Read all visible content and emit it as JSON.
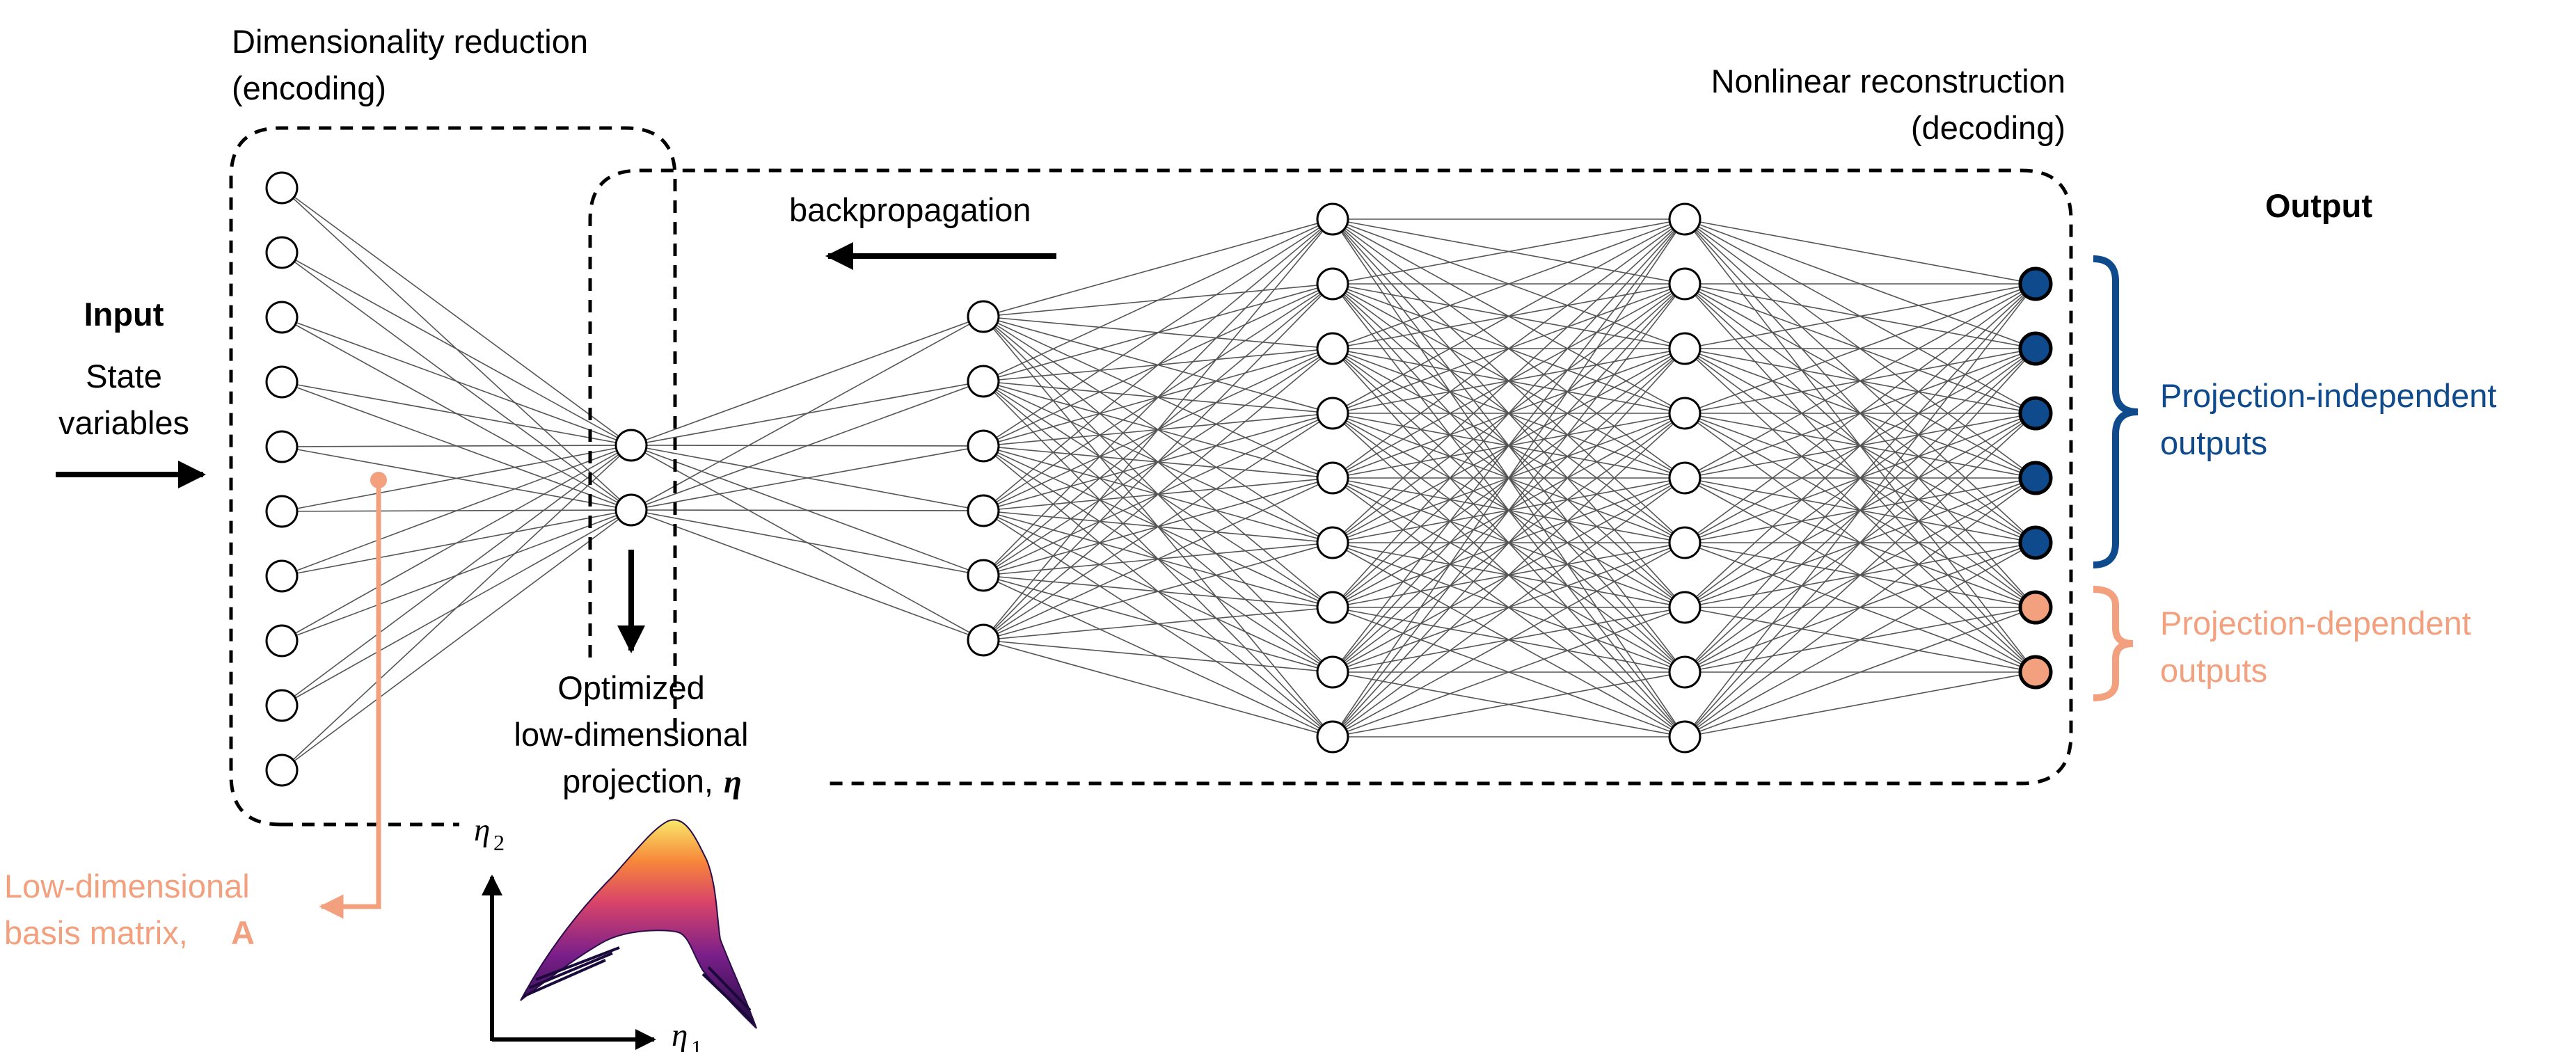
{
  "encoder_heading": {
    "line1": "Dimensionality reduction",
    "line2": "(encoding)"
  },
  "decoder_heading": {
    "line1": "Nonlinear reconstruction",
    "line2": "(decoding)"
  },
  "backprop_label": "backpropagation",
  "input": {
    "title": "Input",
    "line1": "State",
    "line2": "variables"
  },
  "output_title": "Output",
  "projection_label": {
    "line1": "Optimized",
    "line2": "low-dimensional",
    "line3": "projection,",
    "symbol": "η"
  },
  "basis_label": {
    "line1": "Low-dimensional",
    "line2": "basis matrix,",
    "symbol": "A"
  },
  "independent_label": {
    "line1": "Projection-independent",
    "line2": "outputs"
  },
  "dependent_label": {
    "line1": "Projection-dependent",
    "line2": "outputs"
  },
  "axes": {
    "x": "η",
    "x_sub": "1",
    "y": "η",
    "y_sub": "2"
  },
  "colors": {
    "independent": "#0e4a8c",
    "dependent": "#f2a07e",
    "line": "#000000",
    "edge": "#555555"
  },
  "network": {
    "layer_sizes": [
      10,
      2,
      6,
      9,
      9,
      7
    ],
    "output_types": [
      "independent",
      "independent",
      "independent",
      "independent",
      "independent",
      "dependent",
      "dependent"
    ]
  }
}
